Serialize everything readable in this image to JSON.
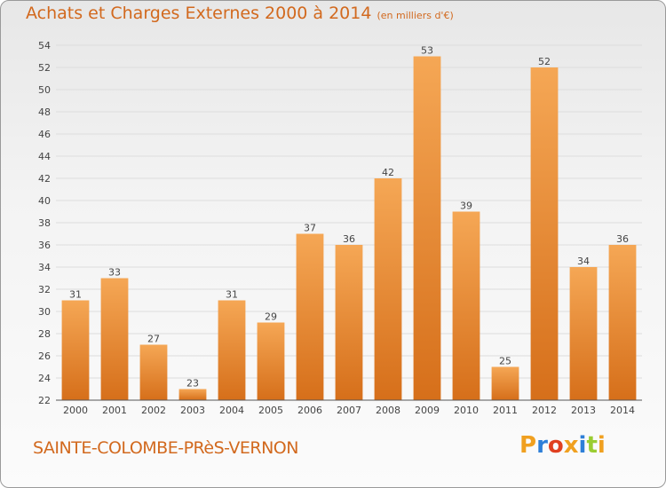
{
  "header": {
    "title": "Achats et Charges Externes 2000 à 2014",
    "subtitle": "(en milliers d'€)"
  },
  "footer": {
    "commune": "SAINTE-COLOMBE-PRèS-VERNON",
    "logo": "Proxiti",
    "logo_colors": [
      "#f0a020",
      "#2e7fd8",
      "#e04020",
      "#f0a020",
      "#2e7fd8",
      "#9acd32",
      "#f0a020"
    ]
  },
  "colors": {
    "bar_light": "#f5a755",
    "bar_dark": "#d66f1a",
    "text_accent": "#d2691e",
    "grid": "#dddddd"
  },
  "chart_data": {
    "type": "bar",
    "title": "Achats et Charges Externes 2000 à 2014",
    "subtitle": "(en milliers d'€)",
    "xlabel": "",
    "ylabel": "",
    "categories": [
      "2000",
      "2001",
      "2002",
      "2003",
      "2004",
      "2005",
      "2006",
      "2007",
      "2008",
      "2009",
      "2010",
      "2011",
      "2012",
      "2013",
      "2014"
    ],
    "values": [
      31,
      33,
      27,
      23,
      31,
      29,
      37,
      36,
      42,
      53,
      39,
      25,
      52,
      34,
      36
    ],
    "ylim": [
      22,
      54
    ],
    "yticks": [
      22,
      24,
      26,
      28,
      30,
      32,
      34,
      36,
      38,
      40,
      42,
      44,
      46,
      48,
      50,
      52,
      54
    ],
    "grid": true,
    "legend": "none"
  }
}
